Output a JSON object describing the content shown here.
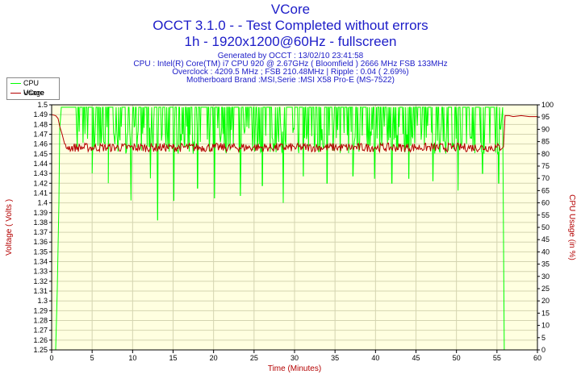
{
  "header": {
    "title_line1": "VCore",
    "title_line2": "OCCT 3.1.0 -  - Test Completed without errors",
    "title_line3": "1h - 1920x1200@60Hz - fullscreen",
    "info_line1": "Generated by OCCT : 13/02/10 23:41:58",
    "info_line2": "CPU : Intel(R) Core(TM) i7 CPU 920 @ 2.67GHz ( Bloomfield ) 2666 MHz FSB 133MHz",
    "info_line3": "Overclock : 4209.5 MHz ; FSB 210.48MHz | Ripple : 0.04 ( 2.69%)",
    "info_line4": "Motherboard Brand :MSI,Serie :MSI X58 Pro-E (MS-7522)"
  },
  "colors": {
    "title": "#1c1cc8",
    "axis_title": "#b40000",
    "cpu_usage": "#00ff00",
    "vcore": "#b40000",
    "grid": "#d4d4b0",
    "plot_bg": "#ffffe0"
  },
  "chart_data": {
    "type": "line",
    "title": "VCore",
    "xlabel": "Time (Minutes)",
    "ylabel_left": "Voltage ( Volts )",
    "ylabel_right": "CPU Usage (in %)",
    "xlim": [
      0,
      60
    ],
    "ylim_left": [
      1.25,
      1.5
    ],
    "ylim_right": [
      0,
      100
    ],
    "x_ticks": [
      "0",
      "5",
      "10",
      "15",
      "20",
      "25",
      "30",
      "35",
      "40",
      "45",
      "50",
      "55",
      "60"
    ],
    "y_ticks_left": [
      "1.5",
      "1.49",
      "1.48",
      "1.47",
      "1.46",
      "1.45",
      "1.44",
      "1.43",
      "1.42",
      "1.41",
      "1.4",
      "1.39",
      "1.38",
      "1.37",
      "1.36",
      "1.35",
      "1.34",
      "1.33",
      "1.32",
      "1.31",
      "1.3",
      "1.29",
      "1.28",
      "1.27",
      "1.26",
      "1.25"
    ],
    "y_ticks_right": [
      "100",
      "95",
      "90",
      "85",
      "80",
      "75",
      "70",
      "65",
      "60",
      "55",
      "50",
      "45",
      "40",
      "35",
      "30",
      "25",
      "20",
      "15",
      "10",
      "5",
      "0"
    ],
    "grid": true,
    "legend_position": "top-left",
    "series": [
      {
        "name": "CPU Usage",
        "axis": "right",
        "x": [
          0,
          0.5,
          0.7,
          0.9,
          1.0,
          1.2,
          3,
          5,
          7,
          9,
          11,
          13,
          15,
          17,
          19,
          21,
          23,
          25,
          27,
          29,
          31,
          33,
          35,
          37,
          39,
          41,
          43,
          45,
          47,
          49,
          51,
          53,
          55,
          55.7,
          55.9,
          56.1,
          56.3,
          58,
          60
        ],
        "values": [
          0,
          0,
          25,
          60,
          90,
          99,
          99,
          99,
          99,
          99,
          99,
          99,
          99,
          99,
          99,
          99,
          99,
          99,
          99,
          99,
          99,
          99,
          99,
          99,
          99,
          99,
          99,
          99,
          99,
          99,
          99,
          99,
          99,
          99,
          0,
          0,
          0,
          0,
          0
        ],
        "dip_range": [
          1.5,
          55.5
        ],
        "typical_low": 80,
        "deep_dips": [
          {
            "x": 5.0,
            "value": 72
          },
          {
            "x": 7.0,
            "value": 68
          },
          {
            "x": 9.8,
            "value": 61
          },
          {
            "x": 12.2,
            "value": 70
          },
          {
            "x": 13.1,
            "value": 53
          },
          {
            "x": 15.1,
            "value": 61
          },
          {
            "x": 18.0,
            "value": 66
          },
          {
            "x": 20.1,
            "value": 62
          },
          {
            "x": 23.3,
            "value": 63
          },
          {
            "x": 26.0,
            "value": 67
          },
          {
            "x": 28.6,
            "value": 60
          },
          {
            "x": 31.1,
            "value": 71
          },
          {
            "x": 34.0,
            "value": 68
          },
          {
            "x": 37.2,
            "value": 71
          },
          {
            "x": 39.9,
            "value": 70
          },
          {
            "x": 42.0,
            "value": 68
          },
          {
            "x": 44.1,
            "value": 70
          },
          {
            "x": 47.1,
            "value": 69
          },
          {
            "x": 50.2,
            "value": 65
          },
          {
            "x": 53.2,
            "value": 72
          },
          {
            "x": 55.2,
            "value": 68
          }
        ]
      },
      {
        "name": "VCore",
        "axis": "left",
        "x": [
          0,
          0.5,
          0.8,
          1.0,
          1.3,
          1.6,
          2,
          5,
          10,
          15,
          20,
          25,
          30,
          35,
          40,
          45,
          50,
          55,
          55.8,
          56.0,
          56.5,
          57,
          58,
          59,
          60
        ],
        "values": [
          1.49,
          1.489,
          1.486,
          1.478,
          1.47,
          1.46,
          1.457,
          1.457,
          1.457,
          1.457,
          1.457,
          1.457,
          1.457,
          1.457,
          1.457,
          1.457,
          1.457,
          1.457,
          1.457,
          1.489,
          1.489,
          1.488,
          1.489,
          1.488,
          1.488
        ],
        "ripple_range": [
          1.5,
          55.5
        ],
        "ripple_low": 1.452,
        "ripple_high": 1.461
      }
    ]
  }
}
